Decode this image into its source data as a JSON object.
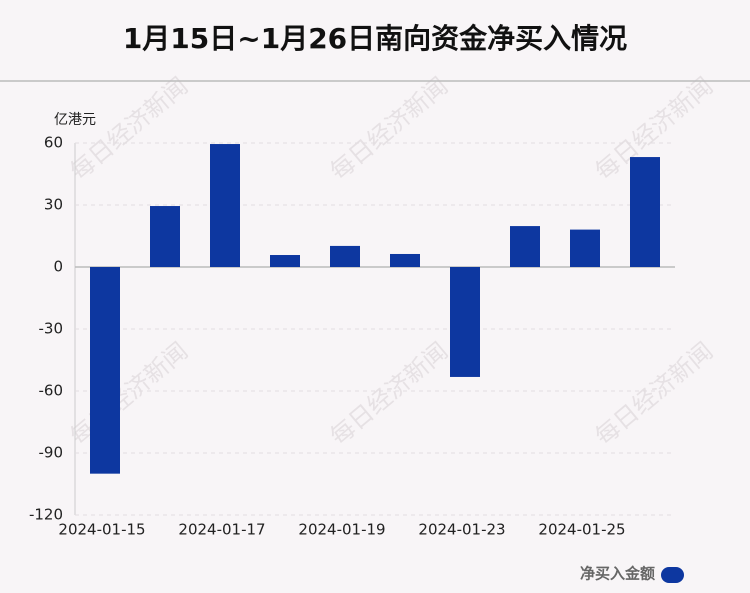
{
  "chart_data": {
    "type": "bar",
    "title": "1月15日~1月26日南向资金净买入情况",
    "y_unit": "亿港元",
    "watermark": "每日经济新闻",
    "categories": [
      "2024-01-15",
      null,
      "2024-01-17",
      null,
      "2024-01-19",
      null,
      "2024-01-23",
      null,
      "2024-01-25",
      null
    ],
    "series": [
      {
        "name": "净买入金额",
        "color": "#0d37a0",
        "values": [
          -100,
          29.5,
          59.5,
          5.8,
          10.2,
          6.3,
          -53.2,
          19.8,
          18.1,
          53.2
        ]
      }
    ],
    "ylim": [
      -120,
      60
    ],
    "yticks": [
      -120,
      -90,
      -60,
      -30,
      0,
      30,
      60
    ],
    "grid": true,
    "legend": "bottom-right"
  }
}
